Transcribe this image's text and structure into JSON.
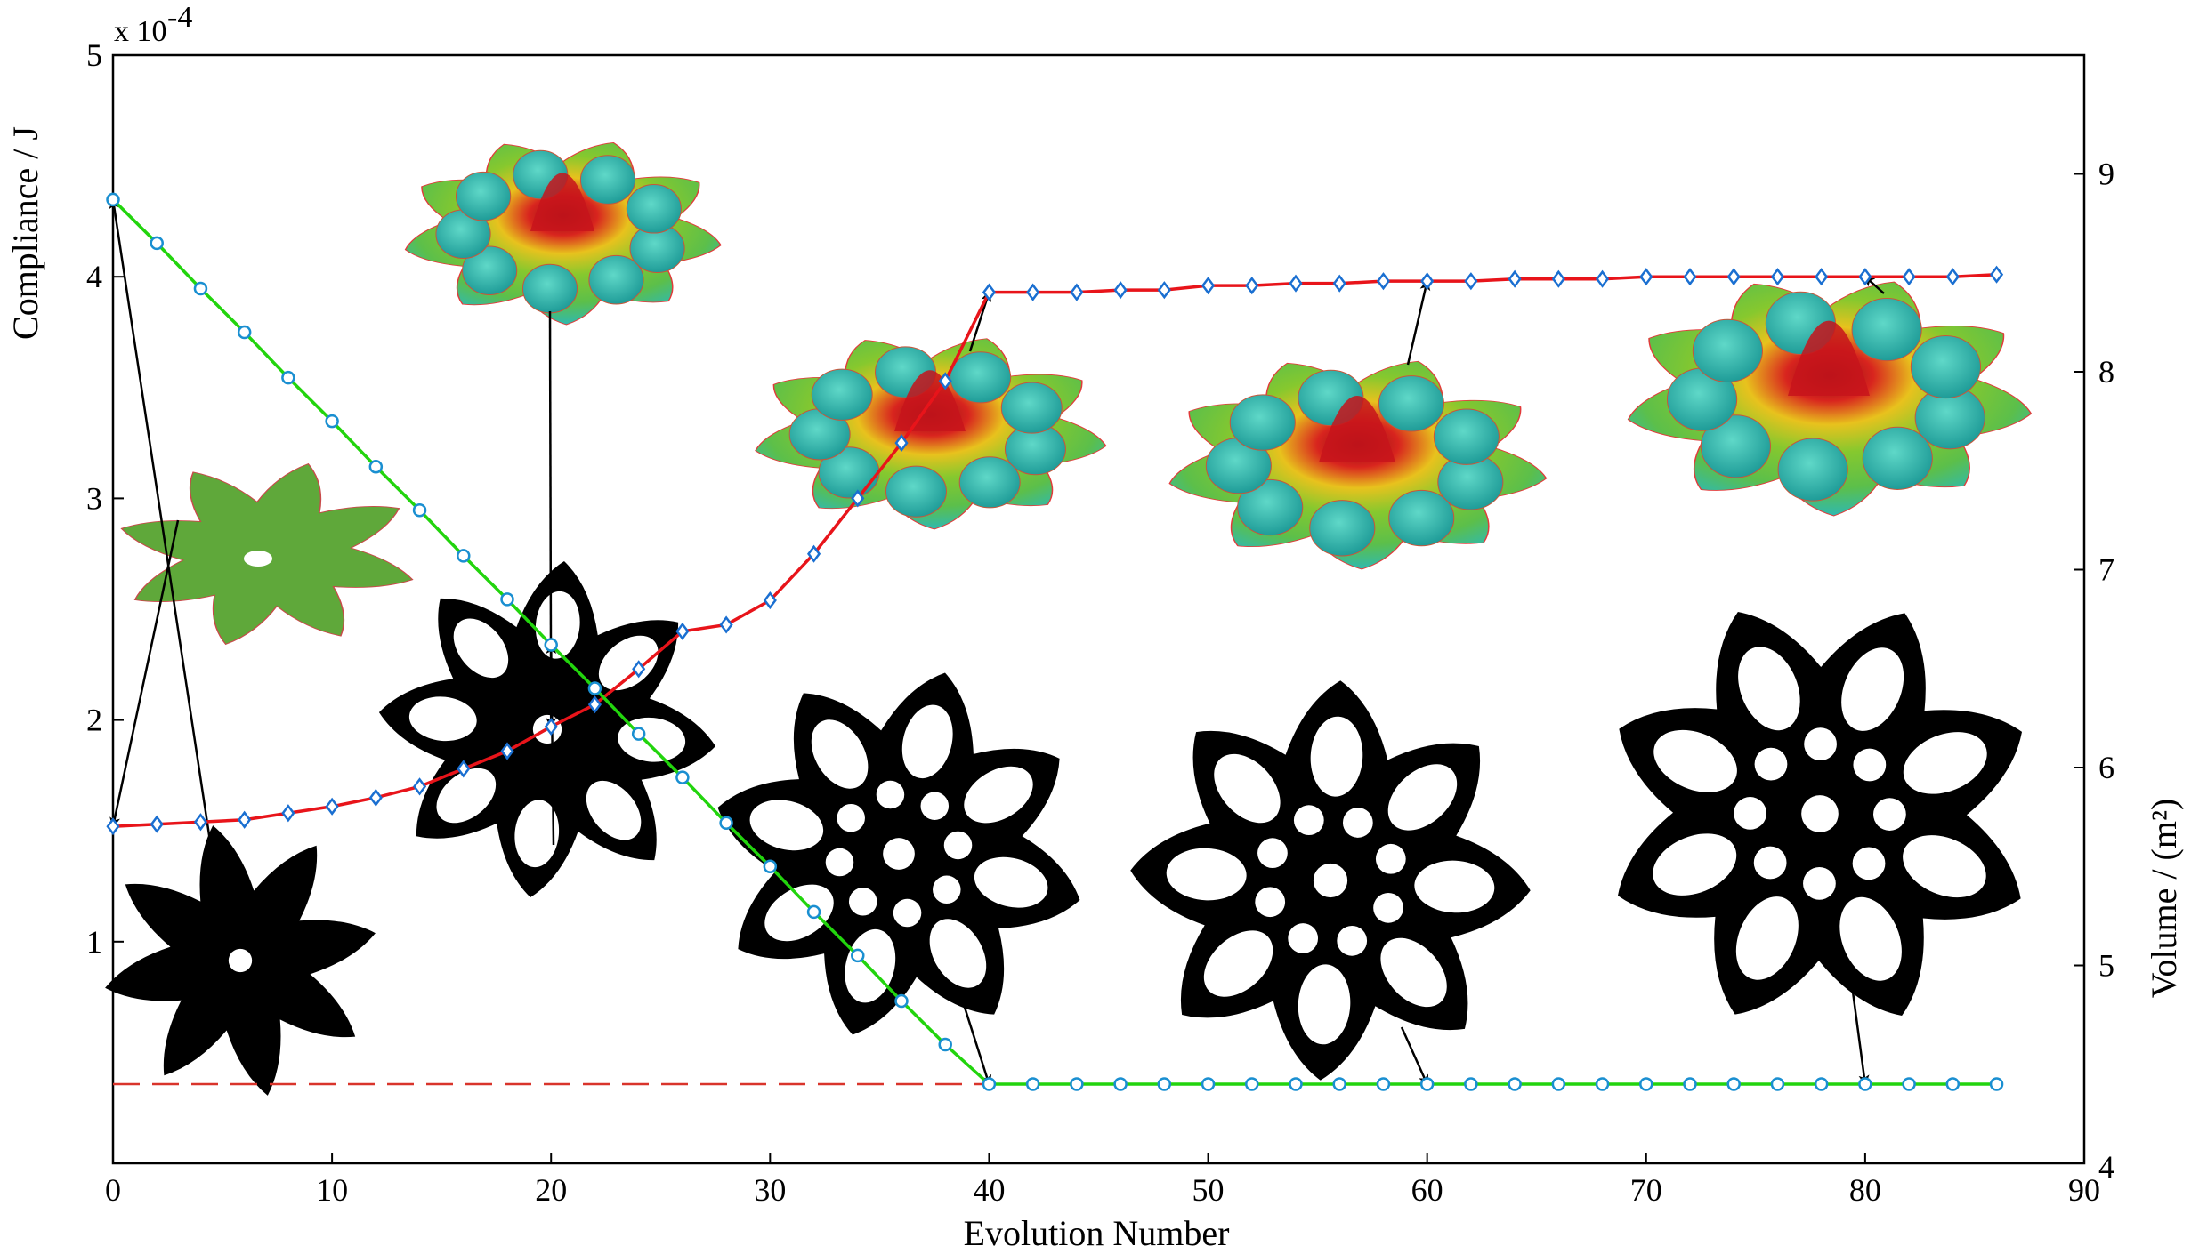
{
  "chart_data": {
    "type": "line",
    "xlabel": "Evolution Number",
    "ylabel_left": "Compliance / J",
    "ylabel_right": "Volume / (m²)",
    "left_multiplier_text": "x 10",
    "left_multiplier_exp": "-4",
    "xlim": [
      0,
      90
    ],
    "ylim_left": [
      0,
      5
    ],
    "ylim_right": [
      4,
      9.6
    ],
    "x_ticks": [
      0,
      10,
      20,
      30,
      40,
      50,
      60,
      70,
      80,
      90
    ],
    "y_ticks_left": [
      1,
      2,
      3,
      4,
      5
    ],
    "y_ticks_right": [
      5,
      6,
      7,
      8,
      9
    ],
    "series": [
      {
        "axis": "left",
        "color": "#e8141a",
        "marker": "diamond",
        "marker_color": "#1a6fd1",
        "x": [
          0,
          2,
          4,
          6,
          8,
          10,
          12,
          14,
          16,
          18,
          20,
          22,
          24,
          26,
          28,
          30,
          32,
          34,
          36,
          38,
          40,
          42,
          44,
          46,
          48,
          50,
          52,
          54,
          56,
          58,
          60,
          62,
          64,
          66,
          68,
          70,
          72,
          74,
          76,
          78,
          80,
          82,
          84,
          86
        ],
        "values": [
          1.52,
          1.53,
          1.54,
          1.55,
          1.58,
          1.61,
          1.65,
          1.7,
          1.78,
          1.86,
          1.97,
          2.07,
          2.23,
          2.4,
          2.43,
          2.54,
          2.75,
          3.0,
          3.25,
          3.53,
          3.93,
          3.93,
          3.93,
          3.94,
          3.94,
          3.96,
          3.96,
          3.97,
          3.97,
          3.98,
          3.98,
          3.98,
          3.99,
          3.99,
          3.99,
          4.0,
          4.0,
          4.0,
          4.0,
          4.0,
          4.0,
          4.0,
          4.0,
          4.01
        ]
      },
      {
        "axis": "right",
        "color": "#22d40d",
        "marker": "circle",
        "marker_color": "#1a8fd1",
        "x": [
          0,
          2,
          4,
          6,
          8,
          10,
          12,
          14,
          16,
          18,
          20,
          22,
          24,
          26,
          28,
          30,
          32,
          34,
          36,
          38,
          40,
          42,
          44,
          46,
          48,
          50,
          52,
          54,
          56,
          58,
          60,
          62,
          64,
          66,
          68,
          70,
          72,
          74,
          76,
          78,
          80,
          82,
          84,
          86
        ],
        "values": [
          8.87,
          8.65,
          8.42,
          8.2,
          7.97,
          7.75,
          7.52,
          7.3,
          7.07,
          6.85,
          6.62,
          6.4,
          6.17,
          5.95,
          5.72,
          5.5,
          5.27,
          5.05,
          4.82,
          4.6,
          4.4,
          4.4,
          4.4,
          4.4,
          4.4,
          4.4,
          4.4,
          4.4,
          4.4,
          4.4,
          4.4,
          4.4,
          4.4,
          4.4,
          4.4,
          4.4,
          4.4,
          4.4,
          4.4,
          4.4,
          4.4,
          4.4,
          4.4,
          4.4
        ]
      }
    ],
    "reference_line": {
      "axis": "right",
      "value": 4.4,
      "color": "#d9342b",
      "style": "dashed"
    },
    "insets": {
      "surface_color_top": "#c7141b",
      "surface_color_mid": "#e2d41c",
      "surface_color_low": "#7cc62e",
      "surface_color_base": "#2fbcb3",
      "initial_design_color": "#5fa83a",
      "topology_color": "#000000"
    }
  }
}
